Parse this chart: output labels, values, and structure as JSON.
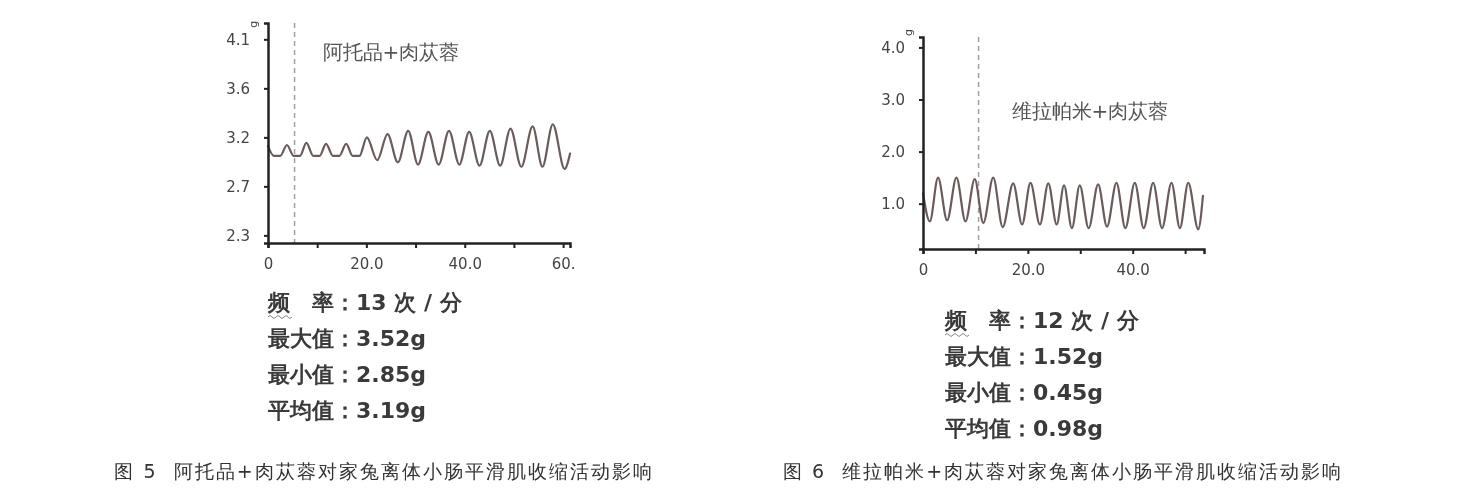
{
  "chart_data": [
    {
      "type": "line",
      "title": "图 5  阿托品+肉苁蓉对家兔离体小肠平滑肌收缩活动影响",
      "ylabel": "g",
      "x": [
        0,
        1.2,
        2.5,
        3.85,
        5.2,
        6.5,
        7.8,
        9.2,
        10.5,
        11.8,
        13.2,
        14.5,
        15.9,
        17.2,
        18.6,
        20.1,
        22.2,
        24.3,
        26.4,
        28.5,
        30.5,
        32.6,
        34.7,
        36.8,
        38.9,
        40.9,
        43.0,
        45.1,
        47.2,
        49.3,
        51.5,
        53.8,
        55.8,
        57.9,
        60.3,
        61.4
      ],
      "series": [
        {
          "color": "#6b5b5b",
          "values": [
            3.12,
            3.03,
            3.03,
            3.13,
            3.03,
            3.03,
            3.15,
            3.03,
            3.03,
            3.14,
            3.03,
            3.03,
            3.14,
            3.03,
            3.03,
            3.2,
            2.99,
            3.23,
            2.97,
            3.26,
            2.95,
            3.25,
            2.95,
            3.26,
            2.95,
            3.25,
            2.94,
            3.26,
            2.94,
            3.28,
            2.93,
            3.3,
            2.93,
            3.32,
            2.91,
            3.05
          ]
        }
      ],
      "xlim": [
        0,
        61.4
      ],
      "ylim": [
        2.23,
        4.25
      ],
      "xticks": [
        0,
        {
          "value": 10,
          "label": null
        },
        {
          "value": 20,
          "label": "20.0"
        },
        {
          "value": 30,
          "label": null
        },
        {
          "value": 40,
          "label": "40.0"
        },
        {
          "value": 50,
          "label": null
        },
        {
          "value": 60,
          "label": "60."
        }
      ],
      "yticks": [
        2.3,
        {
          "value": 2.75,
          "label": "2.7"
        },
        3.2,
        {
          "value": 3.65,
          "label": "3.6"
        },
        4.1
      ],
      "ref_lines": [
        {
          "axis": "x",
          "value": 5.4,
          "label": "阿托品+肉苁蓉",
          "color": "#a0a0a0",
          "line_style": "dashed"
        }
      ],
      "annotations": [
        "频　率：13 次 / 分",
        "最大值：3.52g",
        "最小值：2.85g",
        "平均值：3.19g"
      ]
    },
    {
      "type": "line",
      "title": "图 6  维拉帕米+肉苁蓉对家兔离体小肠平滑肌收缩活动影响",
      "ylabel": "g",
      "x": [
        0,
        1.3,
        2.87,
        4.6,
        6.38,
        8.1,
        9.87,
        11.5,
        13.4,
        15.2,
        17.2,
        18.9,
        20.5,
        22.3,
        23.9,
        25.5,
        26.9,
        28.4,
        29.9,
        31.6,
        33.4,
        35.1,
        36.9,
        38.6,
        40.4,
        42.1,
        43.9,
        45.6,
        47.4,
        49.0,
        50.6,
        52.5,
        53.4
      ],
      "series": [
        {
          "color": "#6b5b5b",
          "values": [
            1.2,
            0.66,
            1.5,
            0.68,
            1.5,
            0.66,
            1.47,
            0.63,
            1.5,
            0.55,
            1.39,
            0.6,
            1.4,
            0.6,
            1.39,
            0.6,
            1.35,
            0.53,
            1.35,
            0.53,
            1.37,
            0.56,
            1.4,
            0.53,
            1.4,
            0.53,
            1.4,
            0.53,
            1.4,
            0.53,
            1.4,
            0.51,
            1.15
          ]
        }
      ],
      "xlim": [
        0,
        53.6
      ],
      "ylim": [
        0.13,
        4.2
      ],
      "xticks": [
        0,
        {
          "value": 10,
          "label": null
        },
        {
          "value": 20,
          "label": "20.0"
        },
        {
          "value": 30,
          "label": null
        },
        {
          "value": 40,
          "label": "40.0"
        },
        {
          "value": 50,
          "label": null
        }
      ],
      "yticks": [
        {
          "value": 1,
          "label": "1.0"
        },
        {
          "value": 2,
          "label": "2.0"
        },
        {
          "value": 3,
          "label": "3.0"
        },
        {
          "value": 4,
          "label": "4.0"
        }
      ],
      "ref_lines": [
        {
          "axis": "x",
          "value": 10.6,
          "label": "维拉帕米+肉苁蓉",
          "color": "#a0a0a0",
          "line_style": "dashed"
        }
      ],
      "annotations": [
        "频　率：12 次 / 分",
        "最大值：1.52g",
        "最小值：0.45g",
        "平均值：0.98g"
      ]
    }
  ]
}
